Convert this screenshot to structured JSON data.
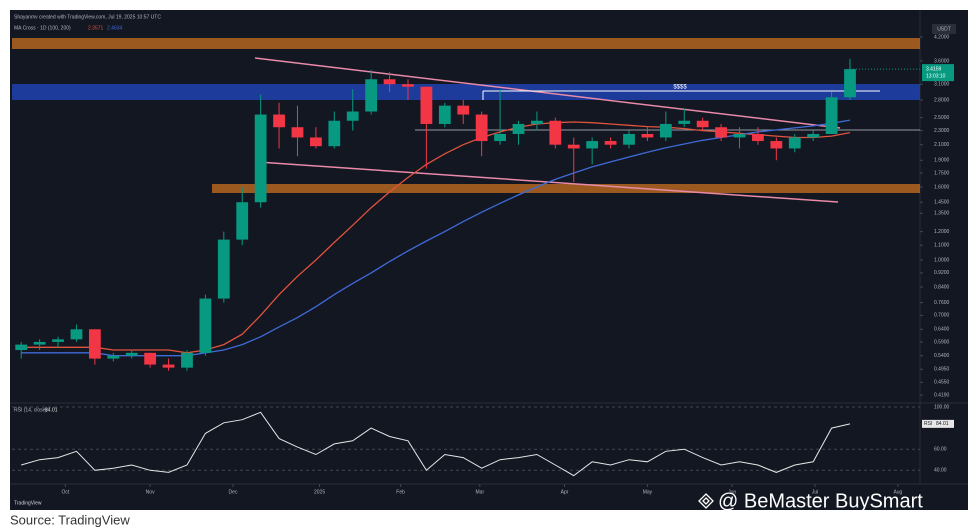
{
  "header": {
    "credit": "Shayanmv created with TradingView.com, Jul 19, 2025 10:57 UTC",
    "indicator": "MA Cross · 1D (100, 200)",
    "ma_values": [
      "2.3571",
      "2.4634"
    ],
    "currency": "USDT",
    "countdown": "13:03:10"
  },
  "chart_data": {
    "type": "candlestick",
    "up_color": "#089981",
    "down_color": "#f23645",
    "candles": [
      {
        "o": 0.56,
        "h": 0.59,
        "l": 0.53,
        "c": 0.58
      },
      {
        "o": 0.58,
        "h": 0.6,
        "l": 0.56,
        "c": 0.59
      },
      {
        "o": 0.59,
        "h": 0.61,
        "l": 0.57,
        "c": 0.6
      },
      {
        "o": 0.6,
        "h": 0.66,
        "l": 0.59,
        "c": 0.64
      },
      {
        "o": 0.64,
        "h": 0.64,
        "l": 0.51,
        "c": 0.53
      },
      {
        "o": 0.53,
        "h": 0.55,
        "l": 0.52,
        "c": 0.54
      },
      {
        "o": 0.54,
        "h": 0.56,
        "l": 0.53,
        "c": 0.55
      },
      {
        "o": 0.55,
        "h": 0.55,
        "l": 0.5,
        "c": 0.51
      },
      {
        "o": 0.51,
        "h": 0.53,
        "l": 0.49,
        "c": 0.5
      },
      {
        "o": 0.5,
        "h": 0.56,
        "l": 0.49,
        "c": 0.55
      },
      {
        "o": 0.55,
        "h": 0.8,
        "l": 0.54,
        "c": 0.78
      },
      {
        "o": 0.78,
        "h": 1.2,
        "l": 0.76,
        "c": 1.14
      },
      {
        "o": 1.14,
        "h": 1.6,
        "l": 1.1,
        "c": 1.45
      },
      {
        "o": 1.45,
        "h": 2.9,
        "l": 1.4,
        "c": 2.55
      },
      {
        "o": 2.55,
        "h": 2.75,
        "l": 2.05,
        "c": 2.35
      },
      {
        "o": 2.35,
        "h": 2.7,
        "l": 1.95,
        "c": 2.2
      },
      {
        "o": 2.2,
        "h": 2.35,
        "l": 2.05,
        "c": 2.08
      },
      {
        "o": 2.08,
        "h": 2.6,
        "l": 2.05,
        "c": 2.45
      },
      {
        "o": 2.45,
        "h": 3.0,
        "l": 2.3,
        "c": 2.6
      },
      {
        "o": 2.6,
        "h": 3.4,
        "l": 2.55,
        "c": 3.2
      },
      {
        "o": 3.2,
        "h": 3.35,
        "l": 2.95,
        "c": 3.1
      },
      {
        "o": 3.1,
        "h": 3.2,
        "l": 2.8,
        "c": 3.05
      },
      {
        "o": 3.05,
        "h": 3.05,
        "l": 1.8,
        "c": 2.4
      },
      {
        "o": 2.4,
        "h": 2.75,
        "l": 2.35,
        "c": 2.7
      },
      {
        "o": 2.7,
        "h": 2.8,
        "l": 2.4,
        "c": 2.55
      },
      {
        "o": 2.55,
        "h": 2.6,
        "l": 1.95,
        "c": 2.15
      },
      {
        "o": 2.15,
        "h": 3.0,
        "l": 2.1,
        "c": 2.25
      },
      {
        "o": 2.25,
        "h": 2.45,
        "l": 2.1,
        "c": 2.4
      },
      {
        "o": 2.4,
        "h": 2.6,
        "l": 2.3,
        "c": 2.45
      },
      {
        "o": 2.45,
        "h": 2.5,
        "l": 2.05,
        "c": 2.1
      },
      {
        "o": 2.1,
        "h": 2.2,
        "l": 1.65,
        "c": 2.05
      },
      {
        "o": 2.05,
        "h": 2.2,
        "l": 1.85,
        "c": 2.15
      },
      {
        "o": 2.15,
        "h": 2.2,
        "l": 2.05,
        "c": 2.1
      },
      {
        "o": 2.1,
        "h": 2.3,
        "l": 2.05,
        "c": 2.25
      },
      {
        "o": 2.25,
        "h": 2.35,
        "l": 2.15,
        "c": 2.2
      },
      {
        "o": 2.2,
        "h": 2.6,
        "l": 2.15,
        "c": 2.4
      },
      {
        "o": 2.4,
        "h": 2.65,
        "l": 2.35,
        "c": 2.45
      },
      {
        "o": 2.45,
        "h": 2.5,
        "l": 2.3,
        "c": 2.35
      },
      {
        "o": 2.35,
        "h": 2.4,
        "l": 2.15,
        "c": 2.2
      },
      {
        "o": 2.2,
        "h": 2.35,
        "l": 2.05,
        "c": 2.25
      },
      {
        "o": 2.25,
        "h": 2.35,
        "l": 2.1,
        "c": 2.15
      },
      {
        "o": 2.15,
        "h": 2.2,
        "l": 1.9,
        "c": 2.05
      },
      {
        "o": 2.05,
        "h": 2.25,
        "l": 2.0,
        "c": 2.2
      },
      {
        "o": 2.2,
        "h": 2.3,
        "l": 2.15,
        "c": 2.25
      },
      {
        "o": 2.25,
        "h": 2.95,
        "l": 2.25,
        "c": 2.85
      },
      {
        "o": 2.85,
        "h": 3.65,
        "l": 2.8,
        "c": 3.4159
      }
    ],
    "ma_lines": [
      {
        "color": "#e0533d",
        "values": [
          0.57,
          0.57,
          0.57,
          0.57,
          0.57,
          0.56,
          0.56,
          0.56,
          0.56,
          0.55,
          0.56,
          0.58,
          0.62,
          0.7,
          0.8,
          0.9,
          1.0,
          1.12,
          1.25,
          1.4,
          1.55,
          1.7,
          1.85,
          1.98,
          2.1,
          2.2,
          2.28,
          2.35,
          2.4,
          2.42,
          2.43,
          2.42,
          2.4,
          2.38,
          2.36,
          2.35,
          2.33,
          2.3,
          2.28,
          2.26,
          2.24,
          2.22,
          2.2,
          2.2,
          2.22,
          2.27
        ]
      },
      {
        "color": "#3f6ad8",
        "values": [
          0.55,
          0.55,
          0.55,
          0.55,
          0.55,
          0.54,
          0.54,
          0.54,
          0.54,
          0.54,
          0.55,
          0.56,
          0.58,
          0.61,
          0.65,
          0.69,
          0.74,
          0.8,
          0.86,
          0.92,
          0.99,
          1.06,
          1.13,
          1.2,
          1.28,
          1.36,
          1.44,
          1.52,
          1.6,
          1.68,
          1.75,
          1.82,
          1.88,
          1.94,
          2.0,
          2.06,
          2.11,
          2.16,
          2.2,
          2.24,
          2.28,
          2.31,
          2.34,
          2.37,
          2.41,
          2.46
        ]
      }
    ],
    "log_scale": true,
    "ylim": [
      0.406,
      4.31
    ],
    "yticks": [
      {
        "value": 4.2,
        "label": "4.2000"
      },
      {
        "value": 3.6,
        "label": "3.6000"
      },
      {
        "value": 3.1,
        "label": "3.1000"
      },
      {
        "value": 2.8,
        "label": "2.8000"
      },
      {
        "value": 2.5,
        "label": "2.5000"
      },
      {
        "value": 2.3,
        "label": "2.3000"
      },
      {
        "value": 2.1,
        "label": "2.1000"
      },
      {
        "value": 1.9,
        "label": "1.9000"
      },
      {
        "value": 1.75,
        "label": "1.7500"
      },
      {
        "value": 1.6,
        "label": "1.6000"
      },
      {
        "value": 1.45,
        "label": "1.4500"
      },
      {
        "value": 1.35,
        "label": "1.3500"
      },
      {
        "value": 1.2,
        "label": "1.2000"
      },
      {
        "value": 1.1,
        "label": "1.1000"
      },
      {
        "value": 1,
        "label": "1.0000"
      },
      {
        "value": 0.92,
        "label": "0.9200"
      },
      {
        "value": 0.84,
        "label": "0.8400"
      },
      {
        "value": 0.76,
        "label": "0.7600"
      },
      {
        "value": 0.7,
        "label": "0.7000"
      },
      {
        "value": 0.64,
        "label": "0.6400"
      },
      {
        "value": 0.59,
        "label": "0.5900"
      },
      {
        "value": 0.54,
        "label": "0.5400"
      },
      {
        "value": 0.495,
        "label": "0.4950"
      },
      {
        "value": 0.455,
        "label": "0.4550"
      },
      {
        "value": 0.419,
        "label": "0.4190"
      }
    ],
    "xlim": [
      0,
      49.3
    ],
    "xticks": [
      {
        "value": 2.9,
        "label": "Oct"
      },
      {
        "value": 7.5,
        "label": "Nov"
      },
      {
        "value": 12.0,
        "label": "Dec"
      },
      {
        "value": 16.7,
        "label": "2025"
      },
      {
        "value": 21.1,
        "label": "Feb"
      },
      {
        "value": 25.4,
        "label": "Mar"
      },
      {
        "value": 30.0,
        "label": "Apr"
      },
      {
        "value": 34.5,
        "label": "May"
      },
      {
        "value": 39.1,
        "label": "Jun"
      },
      {
        "value": 43.6,
        "label": "Jul"
      },
      {
        "value": 48.1,
        "label": "Aug"
      }
    ],
    "annotation": "$$$$",
    "rsi": {
      "label": "RSI (14, close)",
      "badge": "RSI",
      "color": "#e6e6e6",
      "values": [
        45,
        50,
        52,
        58,
        40,
        42,
        45,
        40,
        38,
        45,
        75,
        85,
        88,
        95,
        70,
        62,
        55,
        65,
        68,
        80,
        72,
        68,
        40,
        55,
        52,
        42,
        50,
        52,
        55,
        45,
        35,
        48,
        45,
        50,
        48,
        58,
        60,
        52,
        45,
        48,
        45,
        38,
        45,
        48,
        80,
        84.01
      ],
      "ylim": [
        27,
        100
      ],
      "yticks": [
        {
          "value": 100,
          "label": "100.00"
        },
        {
          "value": 60,
          "label": "60.00"
        },
        {
          "value": 40,
          "label": "40.00"
        }
      ]
    }
  },
  "watermark": "@ BeMaster BuySmart",
  "logo": "TradingView",
  "source": "Source: TradingView"
}
